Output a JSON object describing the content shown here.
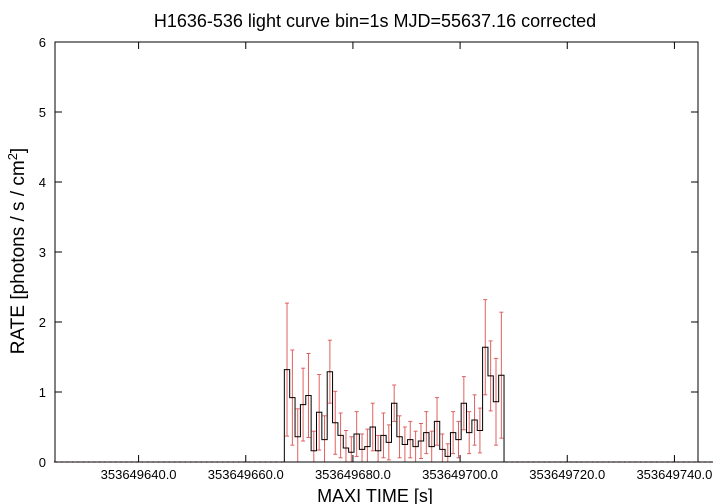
{
  "chart_data": {
    "type": "line",
    "title": "H1636-536 light curve bin=1s MJD=55637.16 corrected",
    "xlabel": "MAXI TIME [s]",
    "ylabel": {
      "main": "RATE [photons / s / cm",
      "sup": "2",
      "close": "]"
    },
    "xlim": [
      353649624.4,
      353649744.4
    ],
    "ylim": [
      0,
      6
    ],
    "x_ticks": [
      353649640.0,
      353649660.0,
      353649680.0,
      353649700.0,
      353649720.0,
      353649740.0
    ],
    "x_tick_labels": [
      "353649640.0",
      "353649660.0",
      "353649680.0",
      "353649700.0",
      "353649720.0",
      "353649740.0"
    ],
    "y_ticks": [
      0,
      1,
      2,
      3,
      4,
      5,
      6
    ],
    "y_tick_labels": [
      "0",
      "1",
      "2",
      "3",
      "4",
      "5",
      "6"
    ],
    "grid": false,
    "legend": "none",
    "colors": {
      "data": "#000000",
      "errorbar": "#e06060",
      "axis": "#000000"
    },
    "bin_width": 1,
    "first_bin": 353649624.7,
    "series": [
      {
        "values": [
          0,
          0,
          0,
          0,
          0,
          0,
          0,
          0,
          0,
          0,
          0,
          0,
          0,
          0,
          0,
          0,
          0,
          0,
          0,
          0,
          0,
          0,
          0,
          0,
          0,
          0,
          0,
          0,
          0,
          0,
          0,
          0,
          0,
          0,
          0,
          0,
          0,
          0,
          0,
          0,
          0,
          0,
          0,
          1.32,
          0.92,
          0.36,
          0.82,
          0.95,
          0.16,
          0.71,
          0.32,
          1.29,
          0.56,
          0.38,
          0.2,
          0.14,
          0.4,
          0.18,
          0.22,
          0.5,
          0.16,
          0.38,
          0.28,
          0.84,
          0.36,
          0.25,
          0.32,
          0.22,
          0.3,
          0.42,
          0.22,
          0.58,
          0.18,
          0.08,
          0.42,
          0.32,
          0.84,
          0.42,
          0.6,
          0.45,
          1.64,
          1.23,
          0.86,
          1.24,
          0,
          0,
          0,
          0,
          0,
          0,
          0,
          0,
          0,
          0,
          0,
          0,
          0,
          0,
          0,
          0,
          0,
          0,
          0,
          0,
          0,
          0,
          0,
          0,
          0,
          0,
          0,
          0,
          0,
          0,
          0,
          0,
          0,
          0,
          0,
          0,
          0,
          0,
          0
        ],
        "errors": [
          0,
          0,
          0,
          0,
          0,
          0,
          0,
          0,
          0,
          0,
          0,
          0,
          0,
          0,
          0,
          0,
          0,
          0,
          0,
          0,
          0,
          0,
          0,
          0,
          0,
          0,
          0,
          0,
          0,
          0,
          0,
          0,
          0,
          0,
          0,
          0,
          0,
          0,
          0,
          0,
          0,
          0,
          0,
          0.95,
          0.68,
          0.4,
          0.52,
          0.6,
          0.28,
          0.54,
          0.34,
          0.45,
          0.45,
          0.32,
          0.25,
          0.22,
          0.32,
          0.22,
          0.25,
          0.34,
          0.22,
          0.32,
          0.25,
          0.26,
          0.3,
          0.25,
          0.26,
          0.22,
          0.25,
          0.3,
          0.22,
          0.34,
          0.22,
          0.18,
          0.3,
          0.26,
          0.38,
          0.3,
          0.36,
          0.32,
          0.68,
          0.5,
          0.62,
          0.9,
          0,
          0,
          0,
          0,
          0,
          0,
          0,
          0,
          0,
          0,
          0,
          0,
          0,
          0,
          0,
          0,
          0,
          0,
          0,
          0,
          0,
          0,
          0,
          0,
          0,
          0,
          0,
          0,
          0,
          0,
          0,
          0,
          0,
          0,
          0,
          0,
          0,
          0,
          0
        ]
      }
    ]
  }
}
